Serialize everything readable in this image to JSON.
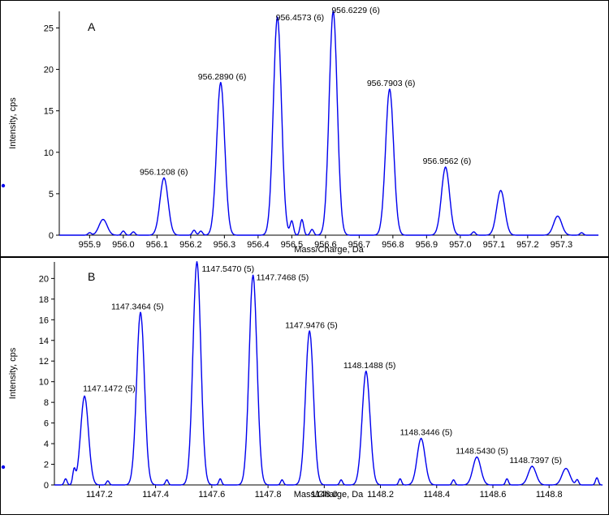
{
  "chart_data": [
    {
      "type": "line",
      "panel_label": "A",
      "xlabel": "Mass/Charge, Da",
      "ylabel": "Intensity, cps",
      "xlim": [
        955.81,
        957.41
      ],
      "ylim": [
        0,
        27
      ],
      "xticks": [
        955.9,
        956.0,
        956.1,
        956.2,
        956.3,
        956.4,
        956.5,
        956.6,
        956.7,
        956.8,
        956.9,
        957.0,
        957.1,
        957.2,
        957.3
      ],
      "xtick_labels": [
        "955.9",
        "956.0",
        "956.1",
        "956.2",
        "956.3",
        "956.4",
        "956.5",
        "956.6",
        "956.7",
        "956.8",
        "956.9",
        "957.0",
        "957.1",
        "957.2",
        "957.3"
      ],
      "yticks": [
        0,
        5,
        10,
        15,
        20,
        25
      ],
      "ytick_labels": [
        "0",
        "5",
        "10",
        "15",
        "20",
        "25"
      ],
      "color": "#0000ee",
      "grid": false,
      "annotations": [
        {
          "x": 956.1208,
          "y": 6.9,
          "text": "956.1208 (6)"
        },
        {
          "x": 956.289,
          "y": 18.4,
          "text": "956.2890 (6)"
        },
        {
          "x": 956.4573,
          "y": 26.3,
          "text": "956.4573 (6)"
        },
        {
          "x": 956.6229,
          "y": 27.0,
          "text": "956.6229 (6)"
        },
        {
          "x": 956.7903,
          "y": 17.6,
          "text": "956.7903 (6)"
        },
        {
          "x": 956.9562,
          "y": 8.2,
          "text": "956.9562 (6)"
        }
      ],
      "peaks": [
        {
          "mz": 955.94,
          "height": 1.9
        },
        {
          "mz": 956.1208,
          "height": 6.9
        },
        {
          "mz": 956.289,
          "height": 18.4
        },
        {
          "mz": 956.4573,
          "height": 26.3
        },
        {
          "mz": 956.6229,
          "height": 27.0
        },
        {
          "mz": 956.7903,
          "height": 17.6
        },
        {
          "mz": 956.9562,
          "height": 8.2
        },
        {
          "mz": 957.12,
          "height": 5.4
        },
        {
          "mz": 957.289,
          "height": 2.3
        }
      ],
      "noise": [
        {
          "mz": 955.9,
          "height": 0.3
        },
        {
          "mz": 956.0,
          "height": 0.5
        },
        {
          "mz": 956.03,
          "height": 0.4
        },
        {
          "mz": 956.21,
          "height": 0.6
        },
        {
          "mz": 956.23,
          "height": 0.5
        },
        {
          "mz": 956.5,
          "height": 1.7
        },
        {
          "mz": 956.53,
          "height": 1.9
        },
        {
          "mz": 956.56,
          "height": 0.7
        },
        {
          "mz": 957.04,
          "height": 0.4
        },
        {
          "mz": 957.36,
          "height": 0.3
        }
      ]
    },
    {
      "type": "line",
      "panel_label": "B",
      "xlabel": "Mass/Charge, Da",
      "ylabel": "Intensity, cps",
      "xlim": [
        1147.04,
        1148.99
      ],
      "ylim": [
        0,
        21.6
      ],
      "xticks": [
        1147.2,
        1147.4,
        1147.6,
        1147.8,
        1148.0,
        1148.2,
        1148.4,
        1148.6,
        1148.8
      ],
      "xtick_labels": [
        "1147.2",
        "1147.4",
        "1147.6",
        "1147.8",
        "1148.0",
        "1148.2",
        "1148.4",
        "1148.6",
        "1148.8"
      ],
      "yticks": [
        0,
        2,
        4,
        6,
        8,
        10,
        12,
        14,
        16,
        18,
        20
      ],
      "ytick_labels": [
        "0",
        "2",
        "4",
        "6",
        "8",
        "10",
        "12",
        "14",
        "16",
        "18",
        "20"
      ],
      "color": "#0000ee",
      "grid": false,
      "annotations": [
        {
          "x": 1147.1472,
          "y": 8.6,
          "text": "1147.1472 (5)"
        },
        {
          "x": 1147.3464,
          "y": 16.7,
          "text": "1147.3464 (5)"
        },
        {
          "x": 1147.547,
          "y": 21.6,
          "text": "1147.5470 (5)"
        },
        {
          "x": 1147.7468,
          "y": 20.3,
          "text": "1147.7468 (5)"
        },
        {
          "x": 1147.9476,
          "y": 14.9,
          "text": "1147.9476 (5)"
        },
        {
          "x": 1148.1488,
          "y": 11.0,
          "text": "1148.1488 (5)"
        },
        {
          "x": 1148.3446,
          "y": 4.5,
          "text": "1148.3446 (5)"
        },
        {
          "x": 1148.543,
          "y": 2.7,
          "text": "1148.5430 (5)"
        },
        {
          "x": 1148.7397,
          "y": 1.8,
          "text": "1148.7397 (5)"
        }
      ],
      "peaks": [
        {
          "mz": 1147.1472,
          "height": 8.6
        },
        {
          "mz": 1147.3464,
          "height": 16.7
        },
        {
          "mz": 1147.547,
          "height": 21.6
        },
        {
          "mz": 1147.7468,
          "height": 20.3
        },
        {
          "mz": 1147.9476,
          "height": 14.9
        },
        {
          "mz": 1148.1488,
          "height": 11.0
        },
        {
          "mz": 1148.3446,
          "height": 4.5
        },
        {
          "mz": 1148.543,
          "height": 2.7
        },
        {
          "mz": 1148.7397,
          "height": 1.8
        },
        {
          "mz": 1148.86,
          "height": 1.6
        }
      ],
      "noise": [
        {
          "mz": 1147.08,
          "height": 0.6
        },
        {
          "mz": 1147.11,
          "height": 1.4
        },
        {
          "mz": 1147.23,
          "height": 0.4
        },
        {
          "mz": 1147.44,
          "height": 0.5
        },
        {
          "mz": 1147.63,
          "height": 0.6
        },
        {
          "mz": 1147.85,
          "height": 0.5
        },
        {
          "mz": 1148.06,
          "height": 0.5
        },
        {
          "mz": 1148.27,
          "height": 0.6
        },
        {
          "mz": 1148.46,
          "height": 0.5
        },
        {
          "mz": 1148.65,
          "height": 0.6
        },
        {
          "mz": 1148.9,
          "height": 0.5
        },
        {
          "mz": 1148.97,
          "height": 0.7
        }
      ]
    }
  ]
}
